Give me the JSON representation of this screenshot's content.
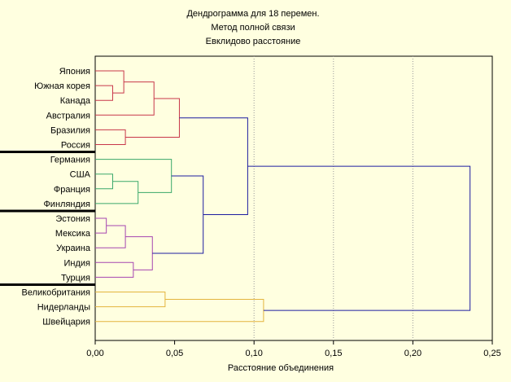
{
  "chart_data": {
    "type": "dendrogram",
    "title_lines": [
      "Дендрограмма для 18  перемен.",
      "Метод полной связи",
      "Евклидово расстояние"
    ],
    "xlabel": "Расстояние объединения",
    "xlim": [
      0,
      0.25
    ],
    "xticks": [
      "0,00",
      "0,05",
      "0,10",
      "0,15",
      "0,20",
      "0,25"
    ],
    "xtick_values": [
      0,
      0.05,
      0.1,
      0.15,
      0.2,
      0.25
    ],
    "grid_lines_at": [
      0.1,
      0.15,
      0.2
    ],
    "leaves": [
      "Япония",
      "Южная корея",
      "Канада",
      "Австралия",
      "Бразилия",
      "Россия",
      "Германия",
      "США",
      "Франция",
      "Финляндия",
      "Эстония",
      "Мексика",
      "Украина",
      "Индия",
      "Турция",
      "Великобритания",
      "Нидерланды",
      "Швейцария"
    ],
    "group_separators_after_leaf": [
      5,
      9,
      14
    ],
    "colors": {
      "red": "#C8374A",
      "green": "#3AA86A",
      "purple": "#A646B0",
      "yellow": "#E3B43D",
      "blue": "#1C1CA0",
      "grid": "#9A9A9A",
      "background": "#FFFFE0"
    },
    "merges": [
      {
        "id": "m1",
        "a": "Южная корея",
        "b": "Канада",
        "height": 0.011,
        "color": "red"
      },
      {
        "id": "m2",
        "a": "Япония",
        "b": "m1",
        "height": 0.018,
        "color": "red"
      },
      {
        "id": "m3",
        "a": "m2",
        "b": "Австралия",
        "height": 0.037,
        "color": "red"
      },
      {
        "id": "m4",
        "a": "Бразилия",
        "b": "Россия",
        "height": 0.019,
        "color": "red"
      },
      {
        "id": "m5",
        "a": "m3",
        "b": "m4",
        "height": 0.053,
        "color": "red"
      },
      {
        "id": "m6",
        "a": "США",
        "b": "Франция",
        "height": 0.011,
        "color": "green"
      },
      {
        "id": "m7",
        "a": "m6",
        "b": "Финляндия",
        "height": 0.027,
        "color": "green"
      },
      {
        "id": "m8",
        "a": "Германия",
        "b": "m7",
        "height": 0.048,
        "color": "green"
      },
      {
        "id": "m9",
        "a": "Эстония",
        "b": "Мексика",
        "height": 0.007,
        "color": "purple"
      },
      {
        "id": "m10",
        "a": "m9",
        "b": "Украина",
        "height": 0.019,
        "color": "purple"
      },
      {
        "id": "m11",
        "a": "Индия",
        "b": "Турция",
        "height": 0.024,
        "color": "purple"
      },
      {
        "id": "m12",
        "a": "m10",
        "b": "m11",
        "height": 0.036,
        "color": "purple"
      },
      {
        "id": "m13",
        "a": "m8",
        "b": "m12",
        "height": 0.068,
        "color": "blue"
      },
      {
        "id": "m14",
        "a": "m5",
        "b": "m13",
        "height": 0.096,
        "color": "blue"
      },
      {
        "id": "m15",
        "a": "Великобритания",
        "b": "Нидерланды",
        "height": 0.044,
        "color": "yellow"
      },
      {
        "id": "m16",
        "a": "m15",
        "b": "Швейцария",
        "height": 0.106,
        "color": "yellow"
      },
      {
        "id": "m17",
        "a": "m14",
        "b": "m16",
        "height": 0.236,
        "color": "blue"
      }
    ]
  }
}
